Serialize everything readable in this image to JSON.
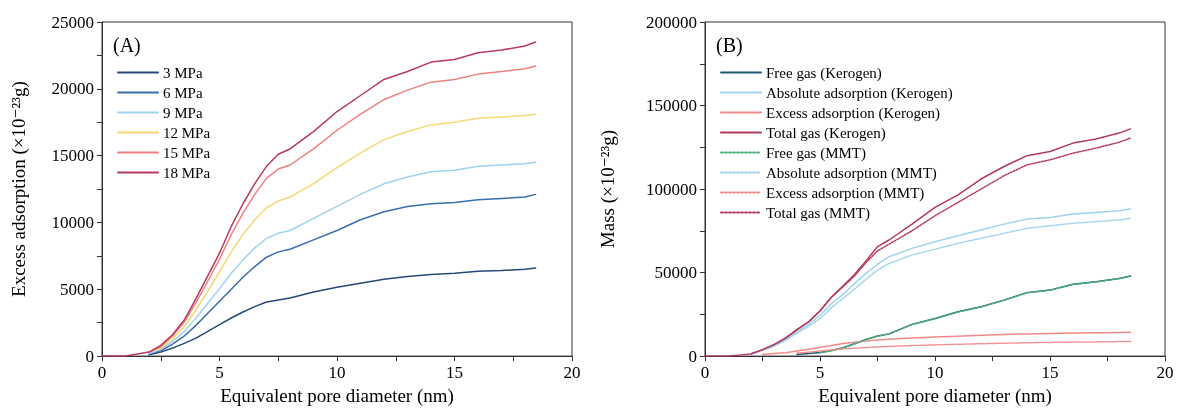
{
  "chart_data": [
    {
      "type": "line",
      "title": "(A)",
      "xlabel": "Equivalent pore diameter (nm)",
      "ylabel": "Excess adsorption (×10⁻²³g)",
      "legend": "top left",
      "marker": "none",
      "line_style": "solid",
      "xlim": [
        0,
        20
      ],
      "ylim": [
        0,
        25000
      ],
      "xticks": [
        0,
        {
          "value": 2.5,
          "label": null
        },
        5,
        {
          "value": 7.5,
          "label": null
        },
        10,
        {
          "value": 12.5,
          "label": null
        },
        15,
        {
          "value": 17.5,
          "label": null
        },
        20
      ],
      "yticks": [
        0,
        {
          "value": 2500,
          "label": null
        },
        5000,
        {
          "value": 7500,
          "label": null
        },
        10000,
        {
          "value": 12500,
          "label": null
        },
        15000,
        {
          "value": 17500,
          "label": null
        },
        20000,
        {
          "value": 22500,
          "label": null
        },
        25000
      ],
      "x": [
        0,
        1,
        2,
        2.5,
        3,
        3.5,
        4,
        4.5,
        5,
        5.5,
        6,
        6.5,
        7,
        7.5,
        8,
        9,
        10,
        11,
        12,
        13,
        14,
        15,
        16,
        17,
        18,
        18.45
      ],
      "series": [
        {
          "name": "3 MPa",
          "color": "#26497a",
          "values": [
            null,
            null,
            100,
            300,
            600,
            950,
            1350,
            1850,
            2350,
            2850,
            3300,
            3700,
            4050,
            4200,
            4350,
            4800,
            5150,
            5450,
            5750,
            5950,
            6100,
            6200,
            6350,
            6400,
            6500,
            6600
          ]
        },
        {
          "name": "6 MPa",
          "color": "#3a6eb0",
          "values": [
            null,
            null,
            200,
            400,
            900,
            1500,
            2300,
            3200,
            4100,
            5000,
            5900,
            6700,
            7400,
            7800,
            8000,
            8700,
            9400,
            10200,
            10800,
            11200,
            11400,
            11500,
            11700,
            11800,
            11900,
            12100
          ]
        },
        {
          "name": "9 MPa",
          "color": "#9fd3f0",
          "values": [
            null,
            null,
            200,
            500,
            1100,
            1850,
            2850,
            3950,
            5050,
            6200,
            7200,
            8100,
            8800,
            9200,
            9400,
            10300,
            11200,
            12100,
            12900,
            13400,
            13800,
            13900,
            14200,
            14300,
            14400,
            14500
          ]
        },
        {
          "name": "12 MPa",
          "color": "#f7d872",
          "values": [
            null,
            null,
            300,
            600,
            1300,
            2200,
            3450,
            4850,
            6300,
            7800,
            9100,
            10200,
            11100,
            11600,
            11900,
            12900,
            14100,
            15200,
            16200,
            16800,
            17300,
            17500,
            17800,
            17900,
            18000,
            18100
          ]
        },
        {
          "name": "15 MPa",
          "color": "#f08080",
          "values": [
            null,
            null,
            300,
            700,
            1500,
            2550,
            4000,
            5600,
            7250,
            9100,
            10700,
            12100,
            13300,
            14000,
            14300,
            15500,
            16900,
            18100,
            19200,
            19900,
            20500,
            20700,
            21100,
            21300,
            21500,
            21700
          ]
        },
        {
          "name": "18 MPa",
          "color": "#b83a5e",
          "values": [
            0,
            0,
            300,
            800,
            1600,
            2700,
            4300,
            6000,
            7700,
            9700,
            11400,
            12900,
            14200,
            15100,
            15500,
            16800,
            18300,
            19500,
            20700,
            21300,
            22000,
            22200,
            22700,
            22900,
            23200,
            23500
          ]
        }
      ]
    },
    {
      "type": "line",
      "title": "(B)",
      "xlabel": "Equivalent pore diameter (nm)",
      "ylabel": "Mass (×10⁻²³g)",
      "legend": "top left",
      "marker": "none",
      "line_style": "solid",
      "xlim": [
        0,
        20
      ],
      "ylim": [
        0,
        200000
      ],
      "xticks": [
        0,
        {
          "value": 2.5,
          "label": null
        },
        5,
        {
          "value": 7.5,
          "label": null
        },
        10,
        {
          "value": 12.5,
          "label": null
        },
        15,
        {
          "value": 17.5,
          "label": null
        },
        20
      ],
      "yticks": [
        0,
        {
          "value": 25000,
          "label": null
        },
        50000,
        {
          "value": 75000,
          "label": null
        },
        100000,
        {
          "value": 125000,
          "label": null
        },
        150000,
        {
          "value": 175000,
          "label": null
        },
        200000
      ],
      "x": [
        0,
        1,
        2,
        2.5,
        3,
        3.5,
        4,
        4.5,
        5,
        5.5,
        6,
        6.5,
        7,
        7.5,
        8,
        9,
        10,
        11,
        12,
        13,
        14,
        15,
        16,
        17,
        18,
        18.5
      ],
      "series": [
        {
          "name": "Free gas (Kerogen)",
          "color": "#1f5a73",
          "values": [
            null,
            null,
            null,
            null,
            null,
            null,
            1000,
            1500,
            2200,
            3300,
            5000,
            7400,
            10000,
            12000,
            13300,
            19000,
            22500,
            26500,
            29500,
            33500,
            38000,
            39500,
            43000,
            44500,
            46500,
            48000
          ]
        },
        {
          "name": "Absolute adsorption (Kerogen)",
          "color": "#9fd3f0",
          "values": [
            null,
            null,
            1200,
            3500,
            6300,
            10000,
            14700,
            18900,
            24500,
            31500,
            37000,
            43500,
            49500,
            55000,
            59500,
            64500,
            68500,
            72000,
            75500,
            79000,
            82000,
            83000,
            85000,
            86000,
            87000,
            88000
          ]
        },
        {
          "name": "Excess adsorption (Kerogen)",
          "color": "#f08a8a",
          "values": [
            null,
            null,
            null,
            1000,
            1500,
            2000,
            3000,
            4100,
            5100,
            6300,
            7500,
            8300,
            9000,
            9600,
            10100,
            10800,
            11400,
            11900,
            12500,
            13000,
            13300,
            13600,
            13800,
            14000,
            14200,
            14300
          ]
        },
        {
          "name": "Total gas (Kerogen)",
          "color": "#b43a5a",
          "values": [
            null,
            null,
            1300,
            3800,
            6800,
            10800,
            15900,
            20500,
            27000,
            35300,
            42000,
            48800,
            57000,
            65500,
            69500,
            79000,
            89000,
            96500,
            106000,
            113500,
            120000,
            122500,
            127500,
            130000,
            133500,
            136000
          ]
        },
        {
          "name": "Free gas (MMT)",
          "color": "#4caf7a",
          "line_style": "dotted",
          "values": [
            null,
            null,
            null,
            null,
            null,
            null,
            null,
            null,
            2000,
            3200,
            4900,
            7300,
            9900,
            11900,
            13200,
            18900,
            22400,
            26400,
            29400,
            33400,
            37900,
            39400,
            42900,
            44400,
            46400,
            47900
          ]
        },
        {
          "name": "Absolute adsorption (MMT)",
          "color": "#9fd3f0",
          "line_style": "dotted",
          "values": [
            null,
            null,
            1100,
            3300,
            5900,
            9300,
            13800,
            17700,
            22500,
            29000,
            34500,
            40000,
            46000,
            51500,
            55500,
            60500,
            64000,
            67500,
            70500,
            73500,
            76500,
            78000,
            79500,
            80500,
            81500,
            82500
          ]
        },
        {
          "name": "Excess adsorption (MMT)",
          "color": "#f08a8a",
          "line_style": "dotted",
          "values": [
            null,
            null,
            null,
            null,
            null,
            null,
            1800,
            2400,
            3100,
            3700,
            4300,
            4700,
            5100,
            5500,
            5800,
            6300,
            6700,
            7100,
            7400,
            7700,
            8000,
            8200,
            8400,
            8500,
            8700,
            8800
          ]
        },
        {
          "name": "Total gas (MMT)",
          "color": "#b43a5a",
          "line_style": "dotted",
          "values": [
            0,
            0,
            1300,
            3800,
            6800,
            10800,
            15900,
            20500,
            27000,
            35300,
            41500,
            48000,
            56000,
            63000,
            67000,
            75000,
            84000,
            92000,
            100000,
            108000,
            114500,
            117500,
            121500,
            124500,
            128000,
            130500
          ]
        }
      ]
    }
  ]
}
